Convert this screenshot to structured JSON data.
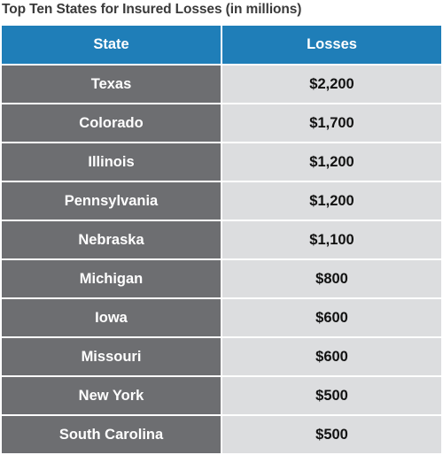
{
  "chart_data": {
    "type": "table",
    "title": "Top Ten States for Insured Losses (in millions)",
    "columns": [
      "State",
      "Losses"
    ],
    "rows": [
      {
        "state": "Texas",
        "losses": "$2,200",
        "value": 2200
      },
      {
        "state": "Colorado",
        "losses": "$1,700",
        "value": 1700
      },
      {
        "state": "Illinois",
        "losses": "$1,200",
        "value": 1200
      },
      {
        "state": "Pennsylvania",
        "losses": "$1,200",
        "value": 1200
      },
      {
        "state": "Nebraska",
        "losses": "$1,100",
        "value": 1100
      },
      {
        "state": "Michigan",
        "losses": "$800",
        "value": 800
      },
      {
        "state": "Iowa",
        "losses": "$600",
        "value": 600
      },
      {
        "state": "Missouri",
        "losses": "$600",
        "value": 600
      },
      {
        "state": "New York",
        "losses": "$500",
        "value": 500
      },
      {
        "state": "South Carolina",
        "losses": "$500",
        "value": 500
      }
    ],
    "colors": {
      "header": "#1f7eb8",
      "state_cell": "#6d6e71",
      "loss_cell": "#dcdddf"
    }
  }
}
